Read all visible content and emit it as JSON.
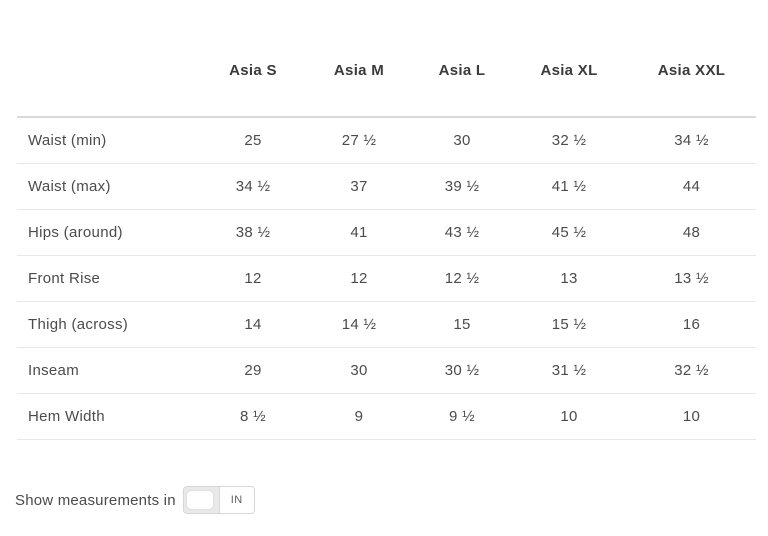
{
  "table": {
    "columns": [
      "Asia S",
      "Asia M",
      "Asia L",
      "Asia XL",
      "Asia XXL"
    ],
    "rows": [
      {
        "label": "Waist (min)",
        "values": [
          "25",
          "27 ½",
          "30",
          "32 ½",
          "34 ½"
        ]
      },
      {
        "label": "Waist (max)",
        "values": [
          "34 ½",
          "37",
          "39 ½",
          "41 ½",
          "44"
        ]
      },
      {
        "label": "Hips (around)",
        "values": [
          "38 ½",
          "41",
          "43 ½",
          "45 ½",
          "48"
        ]
      },
      {
        "label": "Front Rise",
        "values": [
          "12",
          "12",
          "12 ½",
          "13",
          "13 ½"
        ]
      },
      {
        "label": "Thigh (across)",
        "values": [
          "14",
          "14 ½",
          "15",
          "15 ½",
          "16"
        ]
      },
      {
        "label": "Inseam",
        "values": [
          "29",
          "30",
          "30 ½",
          "31 ½",
          "32 ½"
        ]
      },
      {
        "label": "Hem Width",
        "values": [
          "8 ½",
          "9",
          "9 ½",
          "10",
          "10"
        ]
      }
    ]
  },
  "footer": {
    "label": "Show measurements in",
    "unit_toggle": {
      "selected_unit": "IN"
    }
  },
  "colors": {
    "header_text": "#3b3b3b",
    "body_text": "#4b4b4b",
    "header_border": "#d9d9d9",
    "row_border": "#e7e7e7",
    "toggle_border": "#d6d6d6",
    "toggle_track": "#e9e9e9",
    "toggle_knob": "#ffffff",
    "unit_text": "#5f5f5f"
  }
}
